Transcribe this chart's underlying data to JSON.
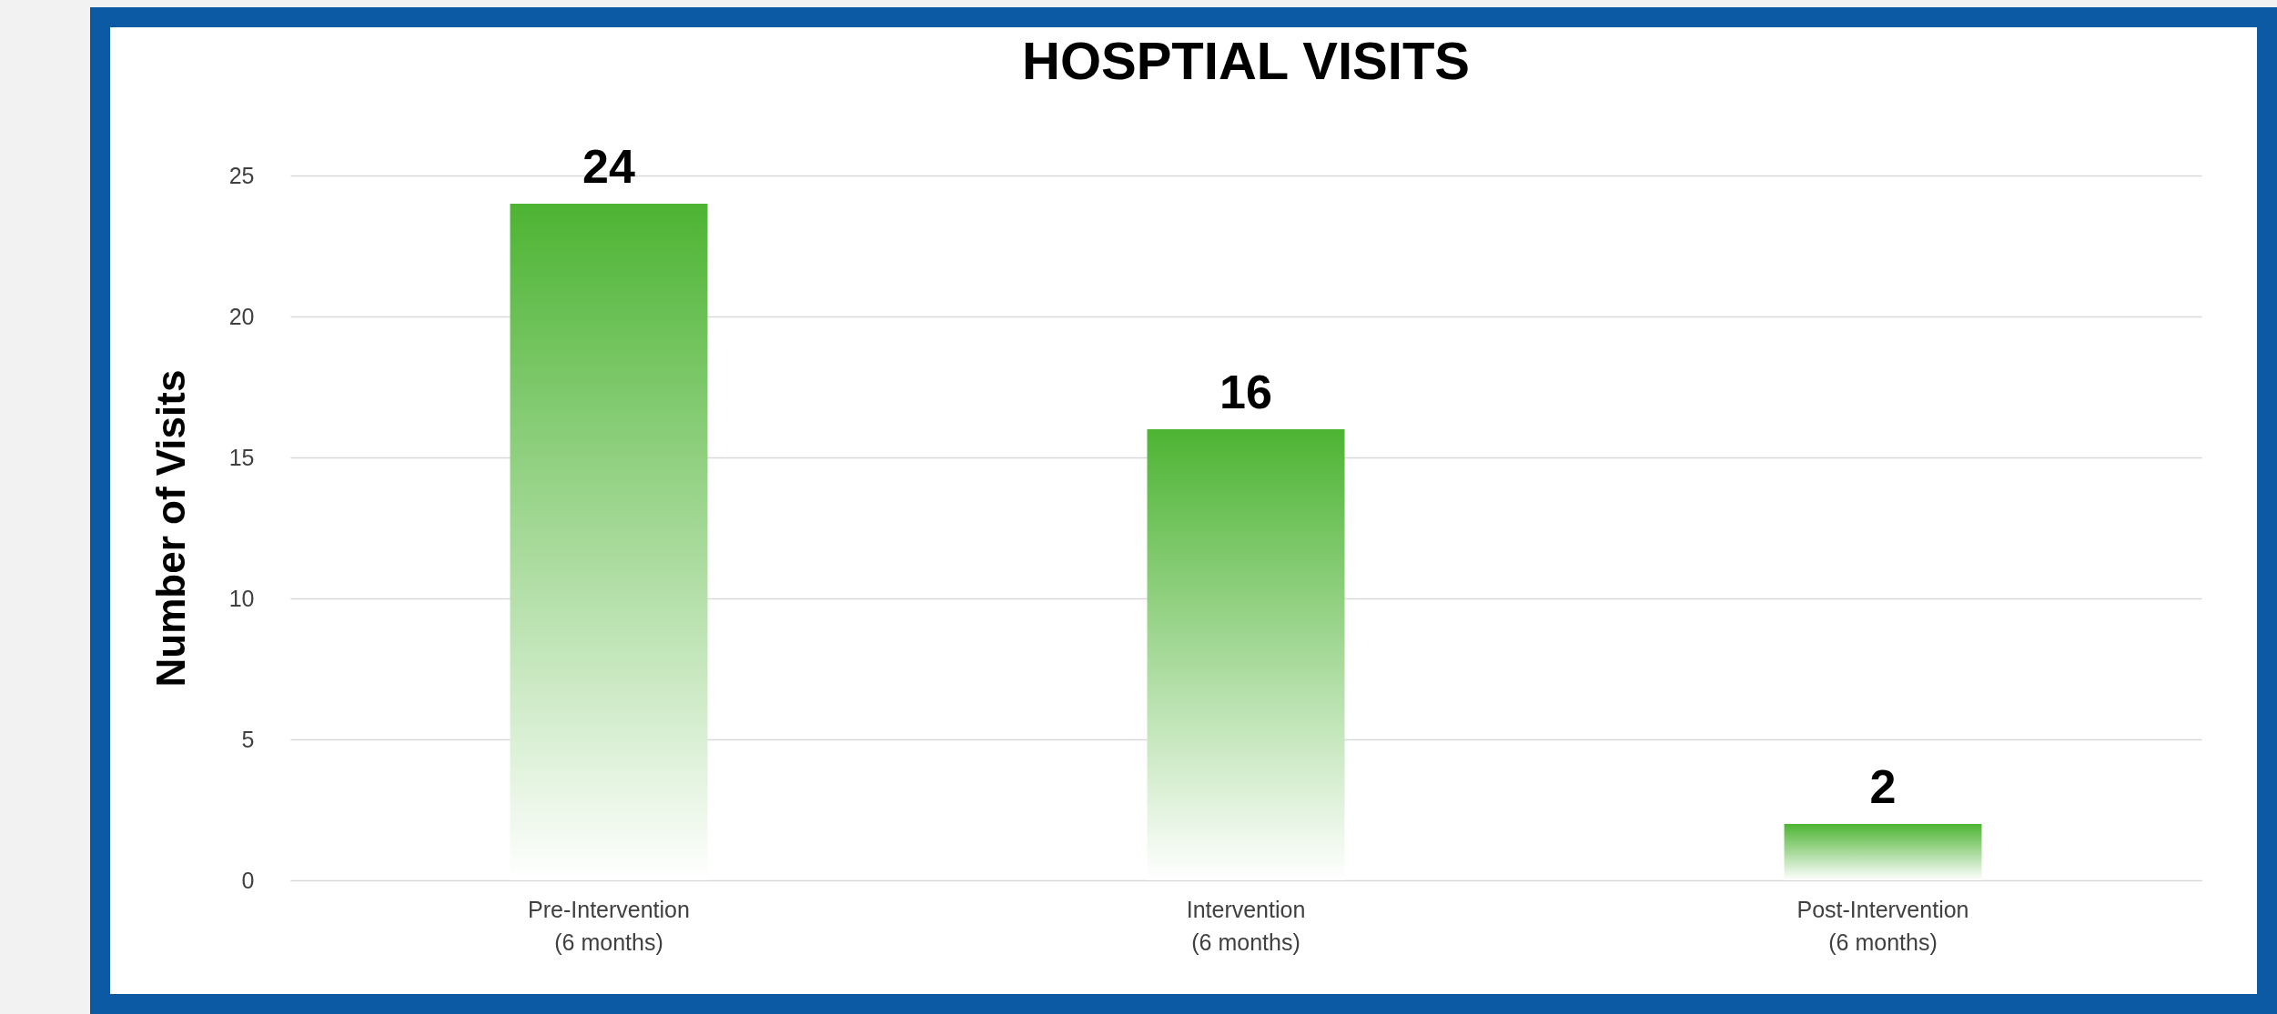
{
  "chart_data": {
    "type": "bar",
    "title": "HOSPTIAL VISITS",
    "ylabel": "Number of Visits",
    "categories": [
      "Pre-Intervention\n(6 months)",
      "Intervention\n(6 months)",
      "Post-Intervention\n(6 months)"
    ],
    "values": [
      24,
      16,
      2
    ],
    "color": "#4db433",
    "ylim": [
      0,
      25
    ],
    "yticks": [
      0,
      5,
      10,
      15,
      20,
      25
    ],
    "grid": "y",
    "data_labels": true
  }
}
